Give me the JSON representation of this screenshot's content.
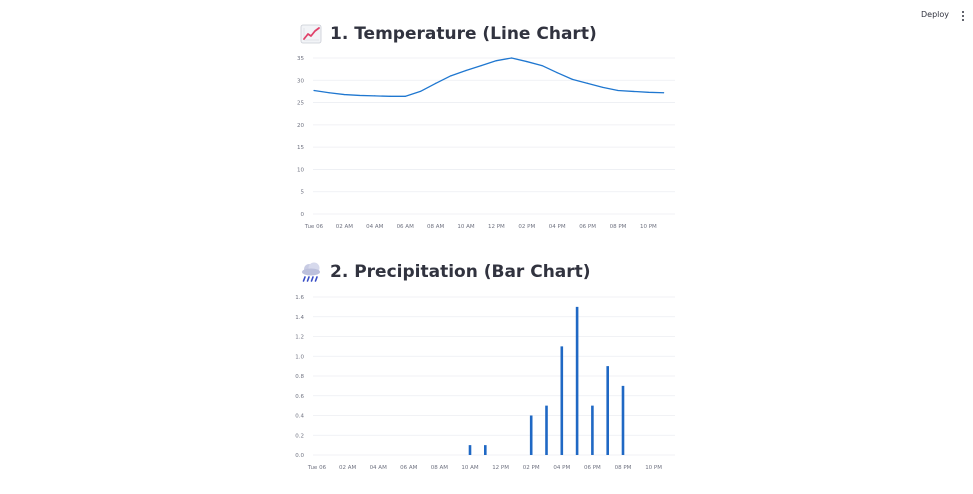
{
  "header": {
    "deploy_label": "Deploy",
    "menu_icon": "vertical-ellipsis-icon"
  },
  "sections": [
    {
      "title": "1. Temperature (Line Chart)",
      "icon": "chart-increasing-icon"
    },
    {
      "title": "2. Precipitation (Bar Chart)",
      "icon": "cloud-rain-icon"
    }
  ],
  "chart_data": [
    {
      "type": "line",
      "x": [
        "Tue 06 12 AM",
        "01 AM",
        "02 AM",
        "03 AM",
        "04 AM",
        "05 AM",
        "06 AM",
        "07 AM",
        "08 AM",
        "09 AM",
        "10 AM",
        "11 AM",
        "12 PM",
        "01 PM",
        "02 PM",
        "03 PM",
        "04 PM",
        "05 PM",
        "06 PM",
        "07 PM",
        "08 PM",
        "09 PM",
        "10 PM",
        "11 PM"
      ],
      "x_tick_labels": [
        "Tue 06",
        "02 AM",
        "04 AM",
        "06 AM",
        "08 AM",
        "10 AM",
        "12 PM",
        "02 PM",
        "04 PM",
        "06 PM",
        "08 PM",
        "10 PM"
      ],
      "series": [
        {
          "values": [
            27.7,
            27.2,
            26.8,
            26.6,
            26.5,
            26.4,
            26.4,
            27.5,
            29.3,
            31.0,
            32.2,
            33.3,
            34.4,
            35.0,
            34.2,
            33.3,
            31.7,
            30.2,
            29.3,
            28.4,
            27.7,
            27.5,
            27.3,
            27.2
          ]
        }
      ],
      "yticks": [
        0,
        5,
        10,
        15,
        20,
        25,
        30,
        35
      ],
      "ylim": [
        0,
        35
      ],
      "color": "#1f77d0",
      "grid": true
    },
    {
      "type": "bar",
      "x": [
        "Tue 06 12 AM",
        "01 AM",
        "02 AM",
        "03 AM",
        "04 AM",
        "05 AM",
        "06 AM",
        "07 AM",
        "08 AM",
        "09 AM",
        "10 AM",
        "11 AM",
        "12 PM",
        "01 PM",
        "02 PM",
        "03 PM",
        "04 PM",
        "05 PM",
        "06 PM",
        "07 PM",
        "08 PM",
        "09 PM",
        "10 PM",
        "11 PM"
      ],
      "x_tick_labels": [
        "Tue 06",
        "02 AM",
        "04 AM",
        "06 AM",
        "08 AM",
        "10 AM",
        "12 PM",
        "02 PM",
        "04 PM",
        "06 PM",
        "08 PM",
        "10 PM"
      ],
      "series": [
        {
          "values": [
            0,
            0,
            0,
            0,
            0,
            0,
            0,
            0,
            0,
            0,
            0.1,
            0.1,
            0,
            0,
            0.4,
            0.5,
            1.1,
            1.5,
            0.5,
            0.9,
            0.7,
            0,
            0,
            0
          ]
        }
      ],
      "yticks": [
        "0.0",
        "0.2",
        "0.4",
        "0.6",
        "0.8",
        "1.0",
        "1.2",
        "1.4",
        "1.6"
      ],
      "ylim": [
        0,
        1.6
      ],
      "color": "#1f68c4",
      "grid": true
    }
  ]
}
